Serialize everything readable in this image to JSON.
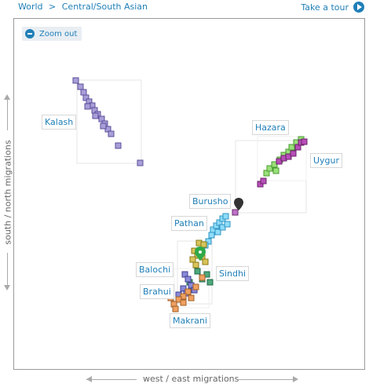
{
  "breadcrumb": {
    "world": "World",
    "separator": ">",
    "region": "Central/South Asian"
  },
  "tour": {
    "label": "Take a tour"
  },
  "zoom": {
    "label": "Zoom out"
  },
  "axes": {
    "x_label": "west / east migrations",
    "y_label": "south / north migrations"
  },
  "populations": [
    {
      "name": "Kalash",
      "color": "#9a8fd0",
      "stroke": "#5a4f9a"
    },
    {
      "name": "Hazara",
      "color": "#9ae07a",
      "stroke": "#4a9a30"
    },
    {
      "name": "Uygur",
      "color": "#b84fb8",
      "stroke": "#6a1f6a"
    },
    {
      "name": "Burusho",
      "color": "#c070c8",
      "stroke": "#6a2f6a"
    },
    {
      "name": "Pathan",
      "color": "#7fd4f4",
      "stroke": "#2f94c4"
    },
    {
      "name": "Balochi",
      "color": "#d8c45a",
      "stroke": "#8a7a1a"
    },
    {
      "name": "Sindhi",
      "color": "#4fa87a",
      "stroke": "#1f684a"
    },
    {
      "name": "Brahui",
      "color": "#7f7fd0",
      "stroke": "#3f3f90"
    },
    {
      "name": "Makrani",
      "color": "#f0a060",
      "stroke": "#a0602a"
    }
  ],
  "colors": {
    "accent": "#1f7fb8",
    "pin_green": "#2faa4a",
    "pin_dark": "#333333"
  }
}
